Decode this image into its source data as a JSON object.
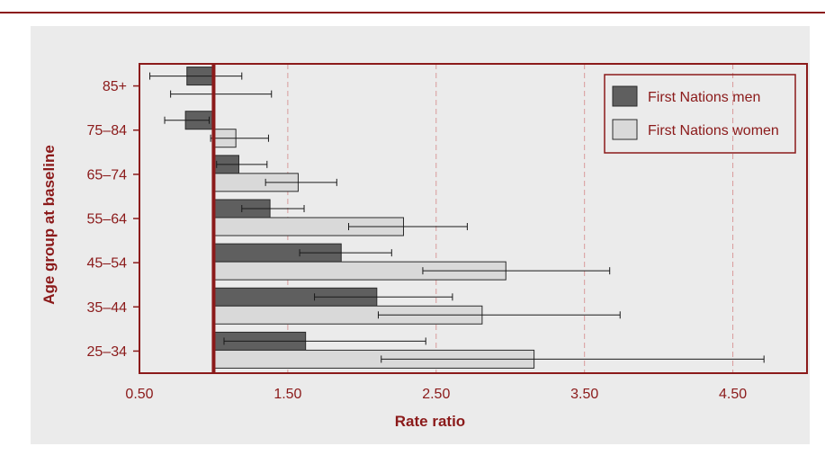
{
  "chart_data": {
    "type": "bar",
    "orientation": "horizontal",
    "categories": [
      "85+",
      "75–84",
      "65–74",
      "55–64",
      "45–54",
      "35–44",
      "25–34"
    ],
    "series": [
      {
        "name": "First Nations men",
        "values": [
          0.82,
          0.81,
          1.17,
          1.38,
          1.86,
          2.1,
          1.62
        ],
        "ci_low": [
          0.57,
          0.67,
          1.02,
          1.19,
          1.58,
          1.68,
          1.07
        ],
        "ci_high": [
          1.19,
          0.97,
          1.36,
          1.61,
          2.2,
          2.61,
          2.43
        ],
        "color": "#5f5f5f"
      },
      {
        "name": "First Nations women",
        "values": [
          1.0,
          1.15,
          1.57,
          2.28,
          2.97,
          2.81,
          3.16
        ],
        "ci_low": [
          0.71,
          0.98,
          1.35,
          1.91,
          2.41,
          2.11,
          2.13
        ],
        "ci_high": [
          1.39,
          1.37,
          1.83,
          2.71,
          3.67,
          3.74,
          4.71
        ],
        "color": "#d9d9d9"
      }
    ],
    "xlabel": "Rate ratio",
    "ylabel": "Age group at baseline",
    "xlim": [
      0.5,
      5.0
    ],
    "xticks": [
      0.5,
      1.5,
      2.5,
      3.5,
      4.5
    ],
    "xtick_labels": [
      "0.50",
      "1.50",
      "2.50",
      "3.50",
      "4.50"
    ],
    "bar_origin": 1.0,
    "reference_line": 1.0,
    "grid": "x-dashed",
    "legend": "top-right"
  },
  "colors": {
    "accent": "#8b1a1a",
    "panel_background": "#ebebeb",
    "gridline": "#d89a9a",
    "bar_outline": "#2b2b2b",
    "error_bar": "#1a1a1a"
  }
}
